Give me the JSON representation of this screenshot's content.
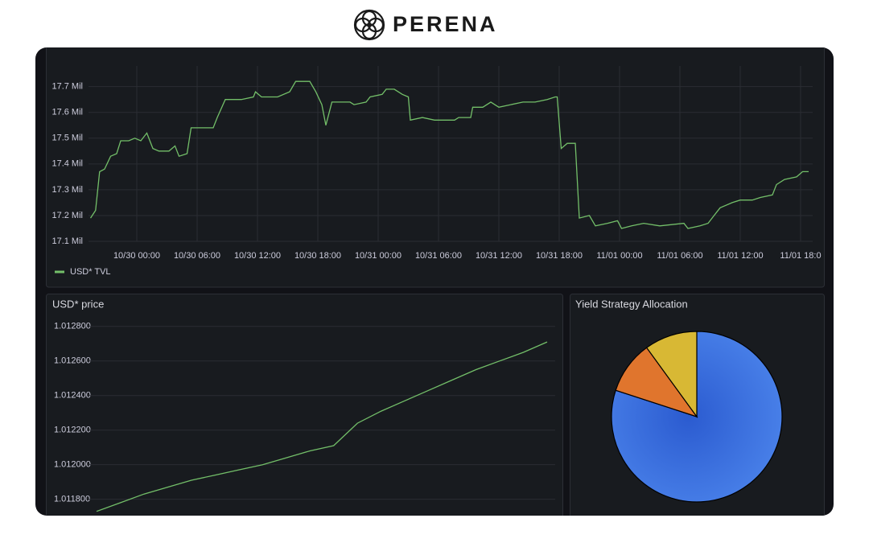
{
  "header": {
    "logo": "PERENA"
  },
  "chart_data": [
    {
      "type": "line",
      "x": [
        -4.6,
        -4.1,
        -3.7,
        -3.2,
        -2.6,
        -2.0,
        -1.6,
        -0.8,
        -0.2,
        0.4,
        1.0,
        1.6,
        2.2,
        3.2,
        3.8,
        4.2,
        5.0,
        5.4,
        6.4,
        7.6,
        8.0,
        8.8,
        10.4,
        11.6,
        11.8,
        12.4,
        14.0,
        15.2,
        15.8,
        17.2,
        17.8,
        18.4,
        18.8,
        19.4,
        21.2,
        21.6,
        22.8,
        23.2,
        24.4,
        24.8,
        25.6,
        26.4,
        27.0,
        27.2,
        28.4,
        29.6,
        31.6,
        32.0,
        33.2,
        33.4,
        34.4,
        35.2,
        36.0,
        38.4,
        39.6,
        40.8,
        41.6,
        41.8,
        42.2,
        42.8,
        43.6,
        44.0,
        45.0,
        45.6,
        46.8,
        47.8,
        48.2,
        49.2,
        50.4,
        52.0,
        54.4,
        54.8,
        56.0,
        56.8,
        57.4,
        58.0,
        59.2,
        60.0,
        61.2,
        62.0,
        63.2,
        63.6,
        64.4,
        65.6,
        66.2,
        66.8
      ],
      "series": [
        {
          "name": "USD* TVL",
          "color": "#73bf69",
          "values": [
            17.19,
            17.22,
            17.37,
            17.38,
            17.43,
            17.44,
            17.49,
            17.49,
            17.5,
            17.49,
            17.52,
            17.46,
            17.45,
            17.45,
            17.47,
            17.43,
            17.44,
            17.54,
            17.54,
            17.54,
            17.58,
            17.65,
            17.65,
            17.66,
            17.68,
            17.66,
            17.66,
            17.68,
            17.72,
            17.72,
            17.68,
            17.63,
            17.55,
            17.64,
            17.64,
            17.63,
            17.64,
            17.66,
            17.67,
            17.69,
            17.69,
            17.67,
            17.66,
            17.57,
            17.58,
            17.57,
            17.57,
            17.58,
            17.58,
            17.62,
            17.62,
            17.64,
            17.62,
            17.64,
            17.64,
            17.65,
            17.66,
            17.66,
            17.46,
            17.48,
            17.48,
            17.19,
            17.2,
            17.16,
            17.17,
            17.18,
            17.15,
            17.16,
            17.17,
            17.16,
            17.17,
            17.15,
            17.16,
            17.17,
            17.2,
            17.23,
            17.25,
            17.26,
            17.26,
            17.27,
            17.28,
            17.32,
            17.34,
            17.35,
            17.37,
            17.37
          ]
        }
      ],
      "xlim": [
        -4.8,
        67.2
      ],
      "xticks": [
        {
          "value": 0,
          "label": "10/30 00:00"
        },
        {
          "value": 6,
          "label": "10/30 06:00"
        },
        {
          "value": 12,
          "label": "10/30 12:00"
        },
        {
          "value": 18,
          "label": "10/30 18:00"
        },
        {
          "value": 24,
          "label": "10/31 00:00"
        },
        {
          "value": 30,
          "label": "10/31 06:00"
        },
        {
          "value": 36,
          "label": "10/31 12:00"
        },
        {
          "value": 42,
          "label": "10/31 18:00"
        },
        {
          "value": 48,
          "label": "11/01 00:00"
        },
        {
          "value": 54,
          "label": "11/01 06:00"
        },
        {
          "value": 60,
          "label": "11/01 12:00"
        },
        {
          "value": 66,
          "label": "11/01 18:0"
        }
      ],
      "ylim": [
        17.1,
        17.78
      ],
      "yticks": [
        {
          "value": 17.1,
          "label": "17.1 Mil"
        },
        {
          "value": 17.2,
          "label": "17.2 Mil"
        },
        {
          "value": 17.3,
          "label": "17.3 Mil"
        },
        {
          "value": 17.4,
          "label": "17.4 Mil"
        },
        {
          "value": 17.5,
          "label": "17.5 Mil"
        },
        {
          "value": 17.6,
          "label": "17.6 Mil"
        },
        {
          "value": 17.7,
          "label": "17.7 Mil"
        }
      ],
      "grid": true,
      "legend": "bottom-left"
    },
    {
      "type": "line",
      "title": "USD* price",
      "series": [
        {
          "color": "#73bf69",
          "values": [
            1.01173,
            1.01178,
            1.01183,
            1.01187,
            1.01191,
            1.01194,
            1.01197,
            1.012,
            1.01204,
            1.01208,
            1.01211,
            1.01224,
            1.01231,
            1.01237,
            1.01243,
            1.01249,
            1.01255,
            1.0126,
            1.01265,
            1.01271
          ]
        }
      ],
      "ylim": [
        1.01171,
        1.01285
      ],
      "yticks": [
        {
          "value": 1.0118,
          "label": "1.011800"
        },
        {
          "value": 1.012,
          "label": "1.012000"
        },
        {
          "value": 1.0122,
          "label": "1.012200"
        },
        {
          "value": 1.0124,
          "label": "1.012400"
        },
        {
          "value": 1.0126,
          "label": "1.012600"
        },
        {
          "value": 1.0128,
          "label": "1.012800"
        }
      ],
      "grid": true
    },
    {
      "type": "pie",
      "title": "Yield Strategy Allocation",
      "values": [
        80,
        10,
        10
      ],
      "colors": [
        "#3d71d9",
        "#e0752d",
        "#d8b834"
      ]
    }
  ]
}
